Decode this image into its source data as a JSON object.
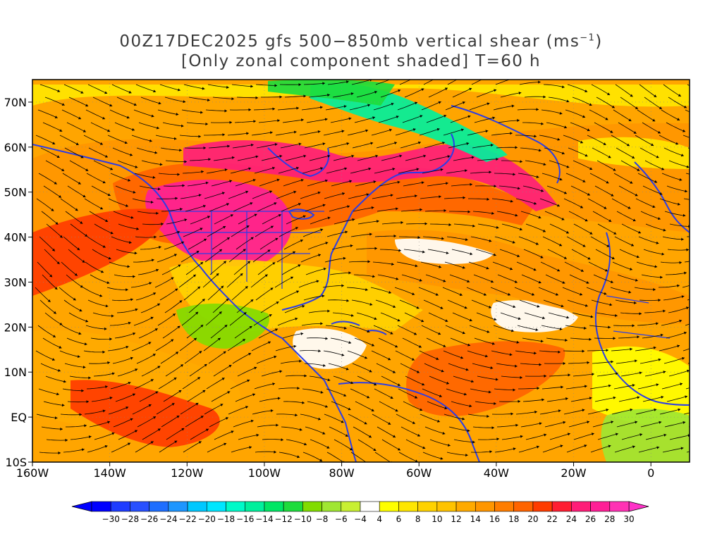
{
  "title": {
    "line1_prefix": "00Z17DEC2025 gfs 500−850mb vertical shear (ms",
    "line1_sup": "−1",
    "line1_suffix": ")",
    "line2": "[Only zonal component shaded] T=60 h"
  },
  "map": {
    "lat_labels": [
      "70N",
      "60N",
      "50N",
      "40N",
      "30N",
      "20N",
      "10N",
      "EQ",
      "10S"
    ],
    "lon_labels": [
      "160W",
      "140W",
      "120W",
      "100W",
      "80W",
      "60W",
      "40W",
      "20W",
      "0"
    ],
    "lat_values": [
      70,
      60,
      50,
      40,
      30,
      20,
      10,
      0,
      -10
    ],
    "lon_values": [
      -160,
      -140,
      -120,
      -100,
      -80,
      -60,
      -40,
      -20,
      0
    ],
    "lon_range": [
      -160,
      10
    ],
    "lat_range": [
      -10,
      75
    ],
    "coastline_color": "#2b3de8",
    "streamline_color": "#000000"
  },
  "colorbar": {
    "labels": [
      "−30",
      "−28",
      "−26",
      "−24",
      "−22",
      "−20",
      "−18",
      "−16",
      "−14",
      "−12",
      "−10",
      "−8",
      "−6",
      "−4",
      "4",
      "6",
      "8",
      "10",
      "12",
      "14",
      "16",
      "18",
      "20",
      "22",
      "24",
      "26",
      "28",
      "30"
    ],
    "colors": [
      "#0000ff",
      "#1e3cff",
      "#2850ff",
      "#1e6eff",
      "#1e96ff",
      "#00c8ff",
      "#00e6ff",
      "#00fac8",
      "#00f09c",
      "#00e664",
      "#1edc3c",
      "#82dc00",
      "#a0e632",
      "#c8f032",
      "#ffffff",
      "#ffff00",
      "#ffe600",
      "#ffd200",
      "#ffc300",
      "#ffaa00",
      "#ff9600",
      "#ff7d00",
      "#ff6400",
      "#ff3c00",
      "#ff1e32",
      "#ff1e78",
      "#ff1e96",
      "#ff32b4"
    ],
    "min_arrow_color": "#0000ff",
    "max_arrow_color": "#ff32c8"
  }
}
